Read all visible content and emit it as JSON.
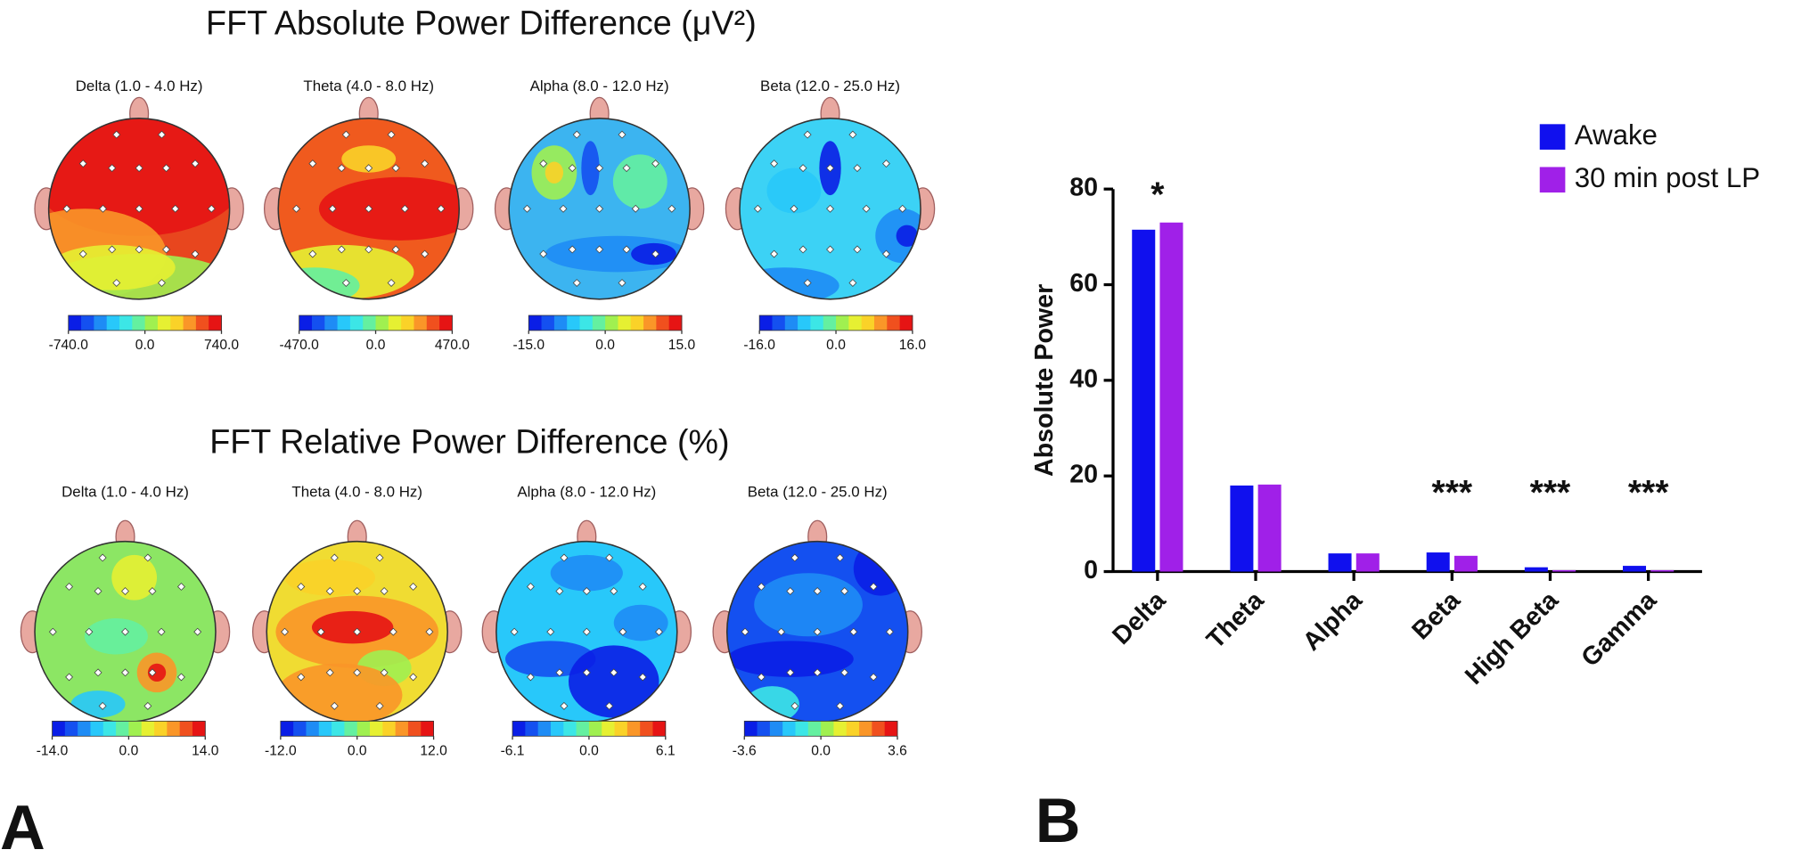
{
  "panel_labels": [
    "A",
    "B"
  ],
  "topomaps": [
    {
      "title": "FFT Absolute Power Difference (μV²)",
      "maps": [
        {
          "label": "Delta (1.0 - 4.0 Hz)",
          "ticks": [
            {
              "value": -740,
              "label": "-740.0"
            },
            {
              "value": 0,
              "label": "0.0"
            },
            {
              "value": 740,
              "label": "740.0"
            }
          ]
        },
        {
          "label": "Theta (4.0 - 8.0 Hz)",
          "ticks": [
            {
              "value": -470,
              "label": "-470.0"
            },
            {
              "value": 0,
              "label": "0.0"
            },
            {
              "value": 470,
              "label": "470.0"
            }
          ]
        },
        {
          "label": "Alpha (8.0 - 12.0 Hz)",
          "ticks": [
            {
              "value": -15,
              "label": "-15.0"
            },
            {
              "value": 0,
              "label": "0.0"
            },
            {
              "value": 15,
              "label": "15.0"
            }
          ]
        },
        {
          "label": "Beta (12.0 - 25.0 Hz)",
          "ticks": [
            {
              "value": -16,
              "label": "-16.0"
            },
            {
              "value": 0,
              "label": "0.0"
            },
            {
              "value": 16,
              "label": "16.0"
            }
          ]
        }
      ]
    },
    {
      "title": "FFT Relative Power Difference (%)",
      "maps": [
        {
          "label": "Delta (1.0 - 4.0 Hz)",
          "ticks": [
            {
              "value": -14,
              "label": "-14.0"
            },
            {
              "value": 0,
              "label": "0.0"
            },
            {
              "value": 14,
              "label": "14.0"
            }
          ]
        },
        {
          "label": "Theta (4.0 - 8.0 Hz)",
          "ticks": [
            {
              "value": -12,
              "label": "-12.0"
            },
            {
              "value": 0,
              "label": "0.0"
            },
            {
              "value": 12,
              "label": "12.0"
            }
          ]
        },
        {
          "label": "Alpha (8.0 - 12.0 Hz)",
          "ticks": [
            {
              "value": -6.1,
              "label": "-6.1"
            },
            {
              "value": 0,
              "label": "0.0"
            },
            {
              "value": 6.1,
              "label": "6.1"
            }
          ]
        },
        {
          "label": "Beta (12.0 - 25.0 Hz)",
          "ticks": [
            {
              "value": -3.6,
              "label": "-3.6"
            },
            {
              "value": 0,
              "label": "0.0"
            },
            {
              "value": 3.6,
              "label": "3.6"
            }
          ]
        }
      ]
    }
  ],
  "chart_data": {
    "type": "bar",
    "ylabel": "Absolute Power",
    "categories": [
      "Delta",
      "Theta",
      "Alpha",
      "Beta",
      "High Beta",
      "Gamma"
    ],
    "series": [
      {
        "name": "Awake",
        "color": "#1010ee",
        "values": [
          71.5,
          18,
          3.8,
          4,
          0.9,
          1.2
        ]
      },
      {
        "name": "30 min post LP",
        "color": "#a020e8",
        "values": [
          73,
          18.2,
          3.8,
          3.3,
          0.3,
          0.3
        ]
      }
    ],
    "significance": [
      "*",
      null,
      null,
      "***",
      "***",
      "***"
    ],
    "ylim": [
      0,
      80
    ],
    "yticks": [
      0,
      20,
      40,
      60,
      80
    ],
    "legend": "upper right"
  }
}
